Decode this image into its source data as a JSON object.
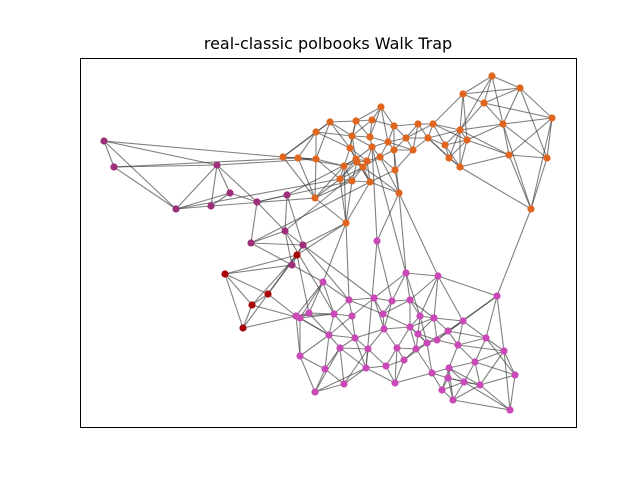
{
  "title": "real-classic polbooks Walk Trap",
  "community_colors": {
    "orange": "#e0661f",
    "pink": "#c94ab6",
    "purple": "#9e2f78",
    "red": "#a80707"
  },
  "edge_color": "#3c3c3c"
}
